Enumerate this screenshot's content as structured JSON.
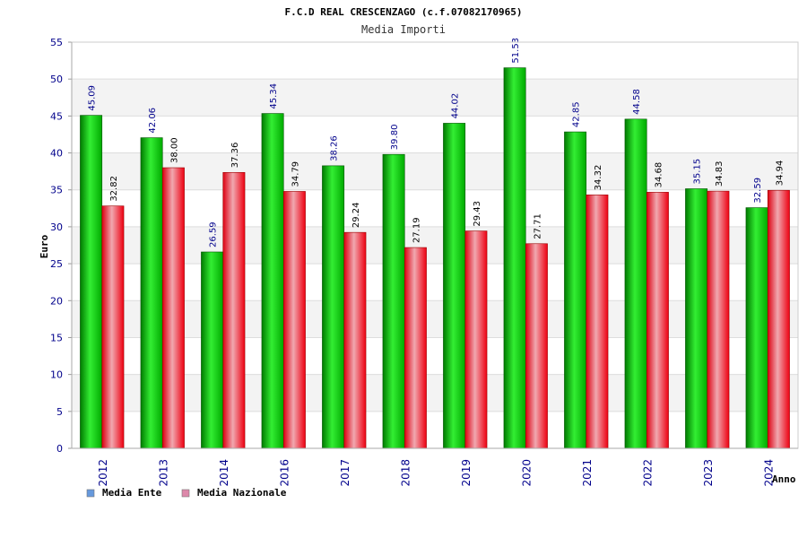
{
  "chart_data": {
    "type": "bar",
    "title": "F.C.D REAL CRESCENZAGO (c.f.07082170965)",
    "subtitle": "Media Importi",
    "ylabel": "Euro",
    "xlabel": "Anno",
    "ylim": [
      0,
      55
    ],
    "yticks": [
      0,
      5,
      10,
      15,
      20,
      25,
      30,
      35,
      40,
      45,
      50,
      55
    ],
    "grid": true,
    "legend_position": "bottom-left",
    "categories": [
      "2012",
      "2013",
      "2014",
      "2016",
      "2017",
      "2018",
      "2019",
      "2020",
      "2021",
      "2022",
      "2023",
      "2024"
    ],
    "series": [
      {
        "name": "Media Ente",
        "color": "#00b000",
        "label_color": "#00008b",
        "legend_color": "#6699dd",
        "values": [
          45.09,
          42.06,
          26.59,
          45.34,
          38.26,
          39.8,
          44.02,
          51.53,
          42.85,
          44.58,
          35.15,
          32.59
        ],
        "labels": [
          "45.09",
          "42.06",
          "26.59",
          "45.34",
          "38.26",
          "39.80",
          "44.02",
          "51.53",
          "42.85",
          "44.58",
          "35.15",
          "32.59"
        ]
      },
      {
        "name": "Media Nazionale",
        "color": "#ee1122",
        "label_color": "#000000",
        "legend_color": "#dd88aa",
        "values": [
          32.82,
          38.0,
          37.36,
          34.79,
          29.24,
          27.19,
          29.43,
          27.71,
          34.32,
          34.68,
          34.83,
          34.94
        ],
        "labels": [
          "32.82",
          "38.00",
          "37.36",
          "34.79",
          "29.24",
          "27.19",
          "29.43",
          "27.71",
          "34.32",
          "34.68",
          "34.83",
          "34.94"
        ]
      }
    ]
  }
}
